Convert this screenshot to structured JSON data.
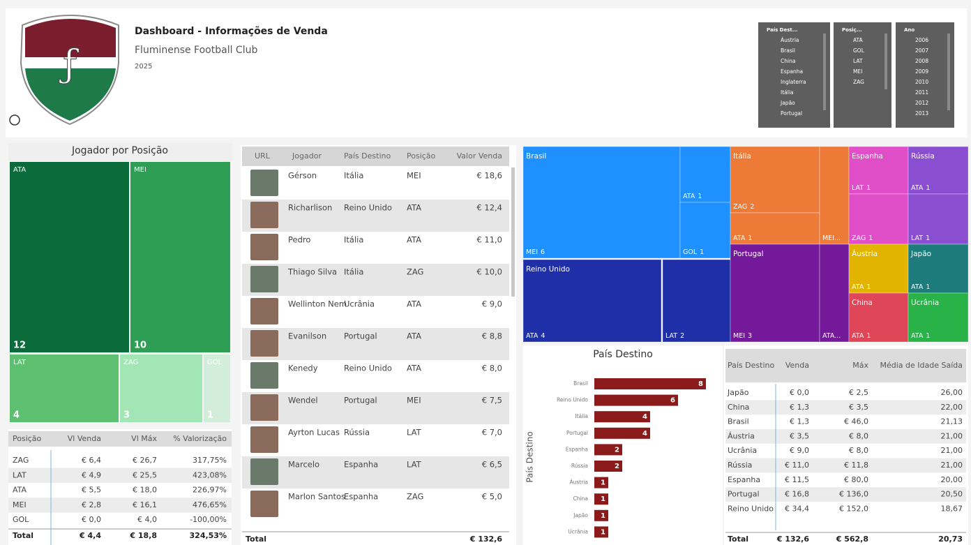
{
  "header": {
    "title": "Dashboard - Informações de Venda",
    "subtitle": "Fluminense Football Club",
    "year": "2025"
  },
  "slicers": [
    {
      "title": "País Dest...",
      "items": [
        "Áustria",
        "Brasil",
        "China",
        "Espanha",
        "Inglaterra",
        "Itália",
        "Japão",
        "Portugal"
      ]
    },
    {
      "title": "Posiç...",
      "items": [
        "ATA",
        "GOL",
        "LAT",
        "MEI",
        "ZAG"
      ]
    },
    {
      "title": "Ano",
      "items": [
        "2006",
        "2007",
        "2008",
        "2009",
        "2010",
        "2011",
        "2012",
        "2013"
      ]
    }
  ],
  "position_treemap": {
    "title": "Jogador por Posição",
    "items": [
      {
        "label": "ATA",
        "value": 12,
        "color": "#0b6b3a"
      },
      {
        "label": "MEI",
        "value": 10,
        "color": "#2e9e55"
      },
      {
        "label": "LAT",
        "value": 4,
        "color": "#5cc070"
      },
      {
        "label": "ZAG",
        "value": 3,
        "color": "#a3e6b6"
      },
      {
        "label": "GOL",
        "value": 1,
        "color": "#d3eddb"
      }
    ]
  },
  "position_table": {
    "columns": [
      "Posição",
      "Vl Venda",
      "Vl Máx",
      "% Valorização"
    ],
    "rows": [
      [
        "ZAG",
        "€ 6,4",
        "€ 26,7",
        "317,75%"
      ],
      [
        "LAT",
        "€ 4,9",
        "€ 25,5",
        "423,08%"
      ],
      [
        "ATA",
        "€ 5,5",
        "€ 18,0",
        "226,97%"
      ],
      [
        "MEI",
        "€ 2,8",
        "€ 16,1",
        "476,65%"
      ],
      [
        "GOL",
        "€ 0,0",
        "€ 4,0",
        "-100,00%"
      ]
    ],
    "total": [
      "Total",
      "€ 4,4",
      "€ 18,8",
      "324,53%"
    ]
  },
  "players_table": {
    "columns": [
      "URL",
      "Jogador",
      "País Destino",
      "Posição",
      "Valor Venda"
    ],
    "rows": [
      [
        "Gérson",
        "Itália",
        "MEI",
        "€ 18,6"
      ],
      [
        "Richarlison",
        "Reino Unido",
        "ATA",
        "€ 12,4"
      ],
      [
        "Pedro",
        "Itália",
        "ATA",
        "€ 11,0"
      ],
      [
        "Thiago Silva",
        "Itália",
        "ZAG",
        "€ 10,0"
      ],
      [
        "Wellinton Nem",
        "Ucrânia",
        "ATA",
        "€ 9,0"
      ],
      [
        "Evanilson",
        "Portugal",
        "ATA",
        "€ 8,8"
      ],
      [
        "Kenedy",
        "Reino Unido",
        "ATA",
        "€ 8,0"
      ],
      [
        "Wendel",
        "Portugal",
        "MEI",
        "€ 7,5"
      ],
      [
        "Ayrton Lucas",
        "Rússia",
        "LAT",
        "€ 7,0"
      ],
      [
        "Marcelo",
        "Espanha",
        "LAT",
        "€ 6,5"
      ],
      [
        "Marlon Santos",
        "Espanha",
        "ZAG",
        "€ 5,0"
      ]
    ],
    "total": [
      "Total",
      "€ 132,6"
    ]
  },
  "country_treemap": {
    "items": [
      {
        "label": "Brasil",
        "color": "#1e90ff",
        "children": [
          {
            "label": "MEI",
            "value": 6
          },
          {
            "label": "ATA",
            "value": 1
          },
          {
            "label": "GOL",
            "value": 1
          }
        ]
      },
      {
        "label": "Reino Unido",
        "color": "#1f2fa8",
        "children": [
          {
            "label": "ATA",
            "value": 4
          },
          {
            "label": "LAT",
            "value": 2
          }
        ]
      },
      {
        "label": "Itália",
        "color": "#ee7a38",
        "children": [
          {
            "label": "ZAG",
            "value": 2
          },
          {
            "label": "ATA",
            "value": 1
          },
          {
            "label": "MEI...",
            "value": 1
          }
        ]
      },
      {
        "label": "Portugal",
        "color": "#74199a",
        "children": [
          {
            "label": "MEI",
            "value": 3
          },
          {
            "label": "ATA...",
            "value": 1
          }
        ]
      },
      {
        "label": "Espanha",
        "color": "#e04fc8",
        "children": [
          {
            "label": "LAT",
            "value": 1
          },
          {
            "label": "ZAG",
            "value": 1
          }
        ]
      },
      {
        "label": "Rússia",
        "color": "#8a4fd1",
        "children": [
          {
            "label": "ATA",
            "value": 1
          },
          {
            "label": "LAT",
            "value": 1
          }
        ]
      },
      {
        "label": "Áustria",
        "color": "#e2b400",
        "children": [
          {
            "label": "ATA",
            "value": 1
          }
        ]
      },
      {
        "label": "Japão",
        "color": "#1d7b7b",
        "children": [
          {
            "label": "ATA",
            "value": 1
          }
        ]
      },
      {
        "label": "China",
        "color": "#df4658",
        "children": [
          {
            "label": "ATA",
            "value": 1
          }
        ]
      },
      {
        "label": "Ucrânia",
        "color": "#28b248",
        "children": [
          {
            "label": "ATA",
            "value": 1
          }
        ]
      }
    ]
  },
  "country_chart": {
    "type": "bar",
    "title": "País Destino",
    "y_label": "País Destino",
    "categories": [
      "Brasil",
      "Reino Unido",
      "Itália",
      "Portugal",
      "Espanha",
      "Rússia",
      "Áustria",
      "China",
      "Japão",
      "Ucrânia"
    ],
    "values": [
      8,
      6,
      4,
      4,
      2,
      2,
      1,
      1,
      1,
      1
    ],
    "color": "#8b1a1a"
  },
  "country_table": {
    "columns": [
      "País Destino",
      "Venda",
      "Máx",
      "Média de Idade Saída"
    ],
    "rows": [
      [
        "Japão",
        "€ 0,0",
        "€ 2,5",
        "26,00"
      ],
      [
        "China",
        "€ 1,3",
        "€ 3,5",
        "22,00"
      ],
      [
        "Brasil",
        "€ 1,3",
        "€ 46,0",
        "21,13"
      ],
      [
        "Áustria",
        "€ 3,5",
        "€ 8,0",
        "21,00"
      ],
      [
        "Ucrânia",
        "€ 9,0",
        "€ 8,0",
        "21,00"
      ],
      [
        "Rússia",
        "€ 11,0",
        "€ 11,8",
        "21,00"
      ],
      [
        "Espanha",
        "€ 11,5",
        "€ 80,0",
        "20,00"
      ],
      [
        "Portugal",
        "€ 16,8",
        "€ 136,0",
        "20,50"
      ],
      [
        "Reino Unido",
        "€ 34,4",
        "€ 152,0",
        "18,67"
      ]
    ],
    "total": [
      "Total",
      "€ 132,6",
      "€ 562,8",
      "20,73"
    ]
  }
}
